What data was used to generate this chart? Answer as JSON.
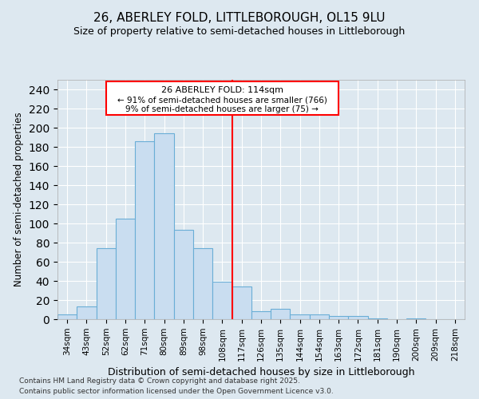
{
  "title1": "26, ABERLEY FOLD, LITTLEBOROUGH, OL15 9LU",
  "title2": "Size of property relative to semi-detached houses in Littleborough",
  "xlabel": "Distribution of semi-detached houses by size in Littleborough",
  "ylabel": "Number of semi-detached properties",
  "categories": [
    "34sqm",
    "43sqm",
    "52sqm",
    "62sqm",
    "71sqm",
    "80sqm",
    "89sqm",
    "98sqm",
    "108sqm",
    "117sqm",
    "126sqm",
    "135sqm",
    "144sqm",
    "154sqm",
    "163sqm",
    "172sqm",
    "181sqm",
    "190sqm",
    "200sqm",
    "209sqm",
    "218sqm"
  ],
  "values": [
    5,
    13,
    74,
    105,
    186,
    194,
    93,
    74,
    39,
    34,
    8,
    11,
    5,
    5,
    3,
    3,
    1,
    0,
    1,
    0,
    0
  ],
  "bar_color": "#c9ddf0",
  "bar_edge_color": "#6aaed6",
  "vline_label": "26 ABERLEY FOLD: 114sqm",
  "line1": "26 ABERLEY FOLD: 114sqm",
  "line2": "← 91% of semi-detached houses are smaller (766)",
  "line3": "9% of semi-detached houses are larger (75) →",
  "ylim": [
    0,
    250
  ],
  "yticks": [
    0,
    20,
    40,
    60,
    80,
    100,
    120,
    140,
    160,
    180,
    200,
    220,
    240
  ],
  "footer1": "Contains HM Land Registry data © Crown copyright and database right 2025.",
  "footer2": "Contains public sector information licensed under the Open Government Licence v3.0.",
  "bg_color": "#dde8f0",
  "grid_color": "#ffffff"
}
